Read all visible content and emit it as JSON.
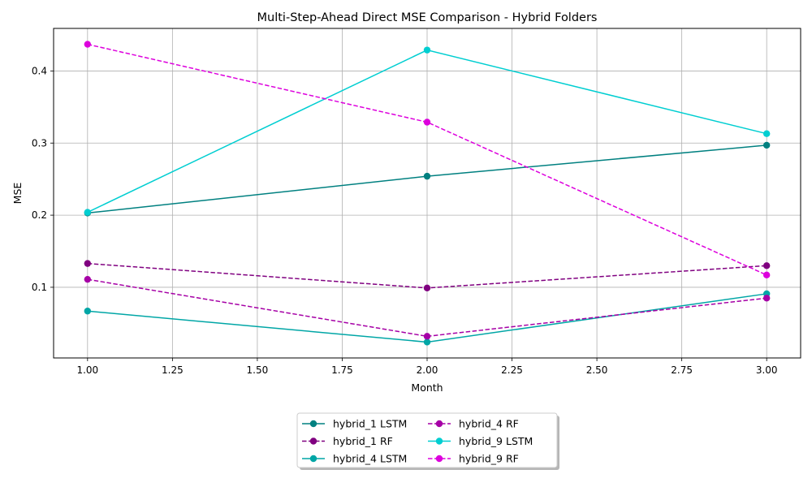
{
  "chart_data": {
    "type": "line",
    "title": "Multi-Step-Ahead Direct MSE Comparison - Hybrid Folders",
    "xlabel": "Month",
    "ylabel": "MSE",
    "xlim": [
      0.9,
      3.1
    ],
    "ylim": [
      0.002,
      0.459
    ],
    "xticks": [
      1.0,
      1.25,
      1.5,
      1.75,
      2.0,
      2.25,
      2.5,
      2.75,
      3.0
    ],
    "xtick_labels": [
      "1.00",
      "1.25",
      "1.50",
      "1.75",
      "2.00",
      "2.25",
      "2.50",
      "2.75",
      "3.00"
    ],
    "yticks": [
      0.1,
      0.2,
      0.3,
      0.4
    ],
    "ytick_labels": [
      "0.1",
      "0.2",
      "0.3",
      "0.4"
    ],
    "grid": true,
    "legend_position": "bottom-center, outside plot, 2 columns",
    "x": [
      1,
      2,
      3
    ],
    "series": [
      {
        "name": "hybrid_1 LSTM",
        "values": [
          0.203,
          0.254,
          0.297
        ],
        "color": "#008080",
        "dash": "solid"
      },
      {
        "name": "hybrid_1 RF",
        "values": [
          0.133,
          0.099,
          0.13
        ],
        "color": "#800080",
        "dash": "dashed"
      },
      {
        "name": "hybrid_4 LSTM",
        "values": [
          0.067,
          0.024,
          0.091
        ],
        "color": "#00A6A6",
        "dash": "solid"
      },
      {
        "name": "hybrid_4 RF",
        "values": [
          0.111,
          0.032,
          0.085
        ],
        "color": "#A600A6",
        "dash": "dashed"
      },
      {
        "name": "hybrid_9 LSTM",
        "values": [
          0.204,
          0.429,
          0.313
        ],
        "color": "#00CED1",
        "dash": "solid"
      },
      {
        "name": "hybrid_9 RF",
        "values": [
          0.437,
          0.329,
          0.117
        ],
        "color": "#DD00DD",
        "dash": "dashed"
      }
    ]
  }
}
